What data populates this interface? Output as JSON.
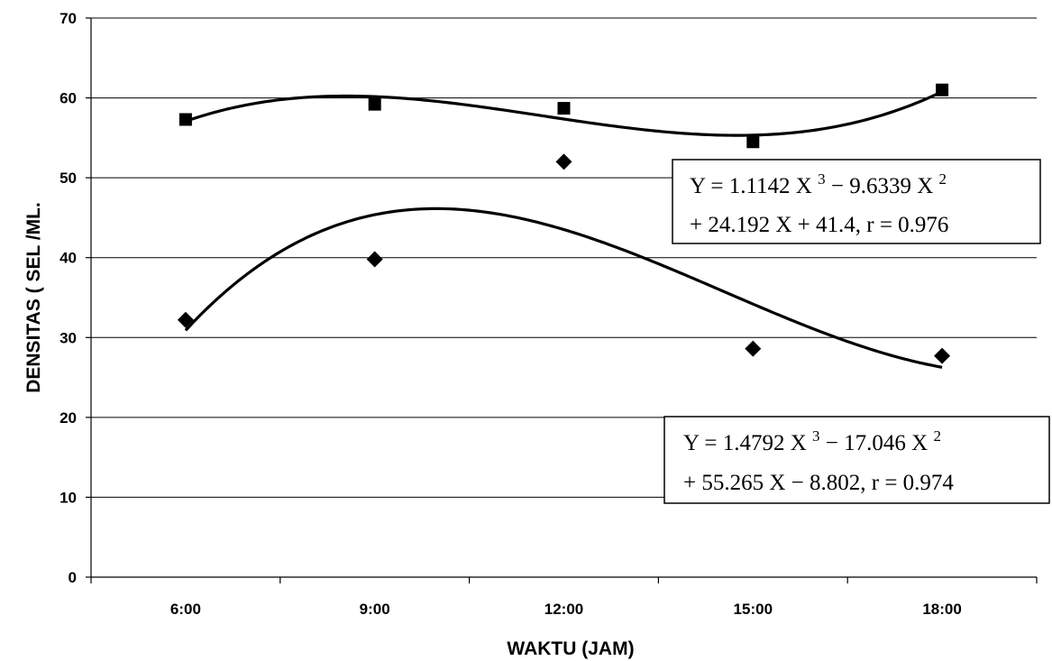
{
  "chart_data": {
    "type": "scatter",
    "xlabel": "WAKTU (JAM)",
    "ylabel": "DENSITAS ( SEL /ML.",
    "categories": [
      "6:00",
      "9:00",
      "12:00",
      "15:00",
      "18:00"
    ],
    "ylim": [
      0,
      70
    ],
    "yticks": [
      0,
      10,
      20,
      30,
      40,
      50,
      60,
      70
    ],
    "grid": true,
    "series": [
      {
        "marker": "square",
        "color": "#000000",
        "values": [
          57.3,
          59.2,
          58.7,
          54.5,
          61.0
        ],
        "trendline": {
          "type": "polynomial",
          "order": 3,
          "coefficients": [
            1.1142,
            -9.6339,
            24.192,
            41.4
          ]
        },
        "equation": {
          "line1": {
            "a": "Y = 1.1142 X ",
            "b": "3",
            "c": " − 9.6339 X ",
            "d": "2"
          },
          "line2": "+ 24.192 X + 41.4, r = 0.976"
        }
      },
      {
        "marker": "diamond",
        "color": "#000000",
        "values": [
          32.2,
          39.8,
          52.0,
          28.6,
          27.7
        ],
        "trendline": {
          "type": "polynomial",
          "order": 3,
          "coefficients": [
            1.4792,
            -17.046,
            55.265,
            -8.802
          ]
        },
        "equation": {
          "line1": {
            "a": "Y = 1.4792 X ",
            "b": "3",
            "c": " − 17.046 X ",
            "d": "2"
          },
          "line2": "+ 55.265 X − 8.802, r = 0.974"
        }
      }
    ]
  }
}
